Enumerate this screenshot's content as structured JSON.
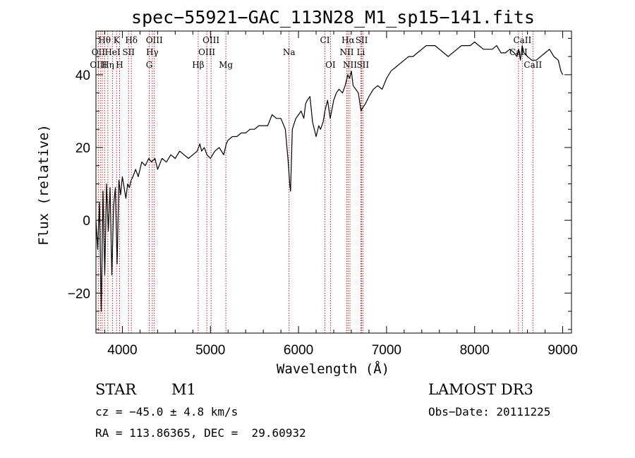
{
  "chart_data": {
    "type": "line",
    "title": "spec−55921−GAC_113N28_M1_sp15−141.fits",
    "xlabel": "Wavelength (Å)",
    "ylabel": "Flux (relative)",
    "xlim": [
      3700,
      9100
    ],
    "ylim": [
      -31,
      52
    ],
    "x_ticks": [
      4000,
      5000,
      6000,
      7000,
      8000,
      9000
    ],
    "y_ticks": [
      -20,
      0,
      20,
      40
    ],
    "grid": false,
    "series": [
      {
        "x": [
          3700,
          3720,
          3740,
          3760,
          3780,
          3800,
          3820,
          3840,
          3860,
          3880,
          3900,
          3920,
          3940,
          3960,
          3980,
          4000,
          4020,
          4040,
          4060,
          4080,
          4100,
          4120,
          4150,
          4180,
          4220,
          4260,
          4300,
          4330,
          4370,
          4400,
          4450,
          4500,
          4550,
          4600,
          4650,
          4700,
          4750,
          4800,
          4850,
          4880,
          4900,
          4930,
          4960,
          5000,
          5050,
          5100,
          5150,
          5180,
          5200,
          5250,
          5300,
          5350,
          5400,
          5450,
          5500,
          5550,
          5600,
          5650,
          5700,
          5750,
          5800,
          5850,
          5880,
          5900,
          5910,
          5930,
          5970,
          6000,
          6030,
          6060,
          6080,
          6100,
          6130,
          6160,
          6180,
          6200,
          6230,
          6250,
          6280,
          6300,
          6330,
          6360,
          6400,
          6430,
          6460,
          6500,
          6530,
          6560,
          6580,
          6600,
          6620,
          6650,
          6680,
          6710,
          6730,
          6760,
          6800,
          6850,
          6900,
          6950,
          7000,
          7050,
          7100,
          7150,
          7200,
          7250,
          7300,
          7350,
          7400,
          7450,
          7500,
          7550,
          7600,
          7650,
          7700,
          7750,
          7800,
          7850,
          7900,
          7950,
          8000,
          8050,
          8100,
          8150,
          8200,
          8250,
          8300,
          8350,
          8400,
          8450,
          8480,
          8500,
          8520,
          8540,
          8560,
          8600,
          8650,
          8700,
          8750,
          8800,
          8850,
          8900,
          8950,
          8980,
          9000
        ],
        "y": [
          0,
          -8,
          5,
          -25,
          8,
          -15,
          10,
          -3,
          9,
          -15,
          4,
          9,
          -12,
          11,
          7,
          12,
          9,
          6,
          10,
          9,
          11,
          12,
          14,
          12,
          16,
          15,
          17,
          16,
          17,
          14,
          17,
          16,
          18,
          17,
          19,
          18,
          17,
          18,
          19,
          21,
          19,
          20,
          18,
          17,
          19,
          20,
          18,
          21,
          22,
          23,
          23,
          24,
          24,
          25,
          25,
          26,
          26,
          26,
          29,
          28,
          28,
          25,
          17,
          10,
          8,
          25,
          28,
          29,
          30,
          28,
          32,
          33,
          34,
          27,
          25,
          23,
          26,
          25,
          27,
          30,
          33,
          28,
          33,
          35,
          36,
          35,
          37,
          40,
          39,
          41,
          37,
          36,
          35,
          30,
          31,
          32,
          34,
          36,
          37,
          36,
          39,
          41,
          42,
          43,
          44,
          45,
          45,
          46,
          47,
          48,
          48,
          48,
          47,
          46,
          45,
          46,
          47,
          48,
          48,
          48,
          49,
          48,
          47,
          47,
          47,
          48,
          46,
          46,
          47,
          46,
          45,
          47,
          44,
          48,
          46,
          45,
          44,
          44,
          45,
          46,
          47,
          45,
          44,
          41,
          40
        ]
      }
    ],
    "line_labels": [
      {
        "text": "Hθ",
        "x": 3798,
        "row": 0
      },
      {
        "text": "K",
        "x": 3934,
        "row": 0
      },
      {
        "text": "Hδ",
        "x": 4102,
        "row": 0
      },
      {
        "text": "OIII",
        "x": 4363,
        "row": 0
      },
      {
        "text": "OIII",
        "x": 5007,
        "row": 0
      },
      {
        "text": "CI",
        "x": 6300,
        "row": 0
      },
      {
        "text": "Hα",
        "x": 6563,
        "row": 0
      },
      {
        "text": "SII",
        "x": 6717,
        "row": 0
      },
      {
        "text": "CaII",
        "x": 8542,
        "row": 0
      },
      {
        "text": "OII",
        "x": 3727,
        "row": 1
      },
      {
        "text": "HeI",
        "x": 3889,
        "row": 1
      },
      {
        "text": "SII",
        "x": 4070,
        "row": 1
      },
      {
        "text": "Hγ",
        "x": 4340,
        "row": 1
      },
      {
        "text": "OIII",
        "x": 4959,
        "row": 1
      },
      {
        "text": "Na",
        "x": 5893,
        "row": 1
      },
      {
        "text": "NII",
        "x": 6548,
        "row": 1
      },
      {
        "text": "Li",
        "x": 6708,
        "row": 1
      },
      {
        "text": "CaII",
        "x": 8498,
        "row": 1
      },
      {
        "text": "OIII",
        "x": 3727,
        "row": 2
      },
      {
        "text": "Hη",
        "x": 3835,
        "row": 2
      },
      {
        "text": "H",
        "x": 3968,
        "row": 2
      },
      {
        "text": "G",
        "x": 4305,
        "row": 2
      },
      {
        "text": "Hβ",
        "x": 4861,
        "row": 2
      },
      {
        "text": "Mg",
        "x": 5175,
        "row": 2
      },
      {
        "text": "OI",
        "x": 6363,
        "row": 2
      },
      {
        "text": "NII",
        "x": 6584,
        "row": 2
      },
      {
        "text": "SII",
        "x": 6731,
        "row": 2
      },
      {
        "text": "CaII",
        "x": 8662,
        "row": 2
      }
    ],
    "marker_lines": [
      3727,
      3750,
      3771,
      3798,
      3835,
      3889,
      3934,
      3968,
      4070,
      4102,
      4305,
      4340,
      4363,
      4861,
      4959,
      5007,
      5175,
      5893,
      6300,
      6363,
      6548,
      6563,
      6584,
      6708,
      6717,
      6731,
      8498,
      8542,
      8662
    ],
    "colors": {
      "spectrum": "#000000",
      "marker": "#b22222",
      "axis": "#000000"
    }
  },
  "info": {
    "class_label": "STAR",
    "subclass_label": "M1",
    "survey": "LAMOST DR3",
    "velocity": "cz = −45.0 ± 4.8 km/s",
    "obs_date": "Obs−Date: 20111225",
    "coords": "RA = 113.86365, DEC =  29.60932"
  }
}
